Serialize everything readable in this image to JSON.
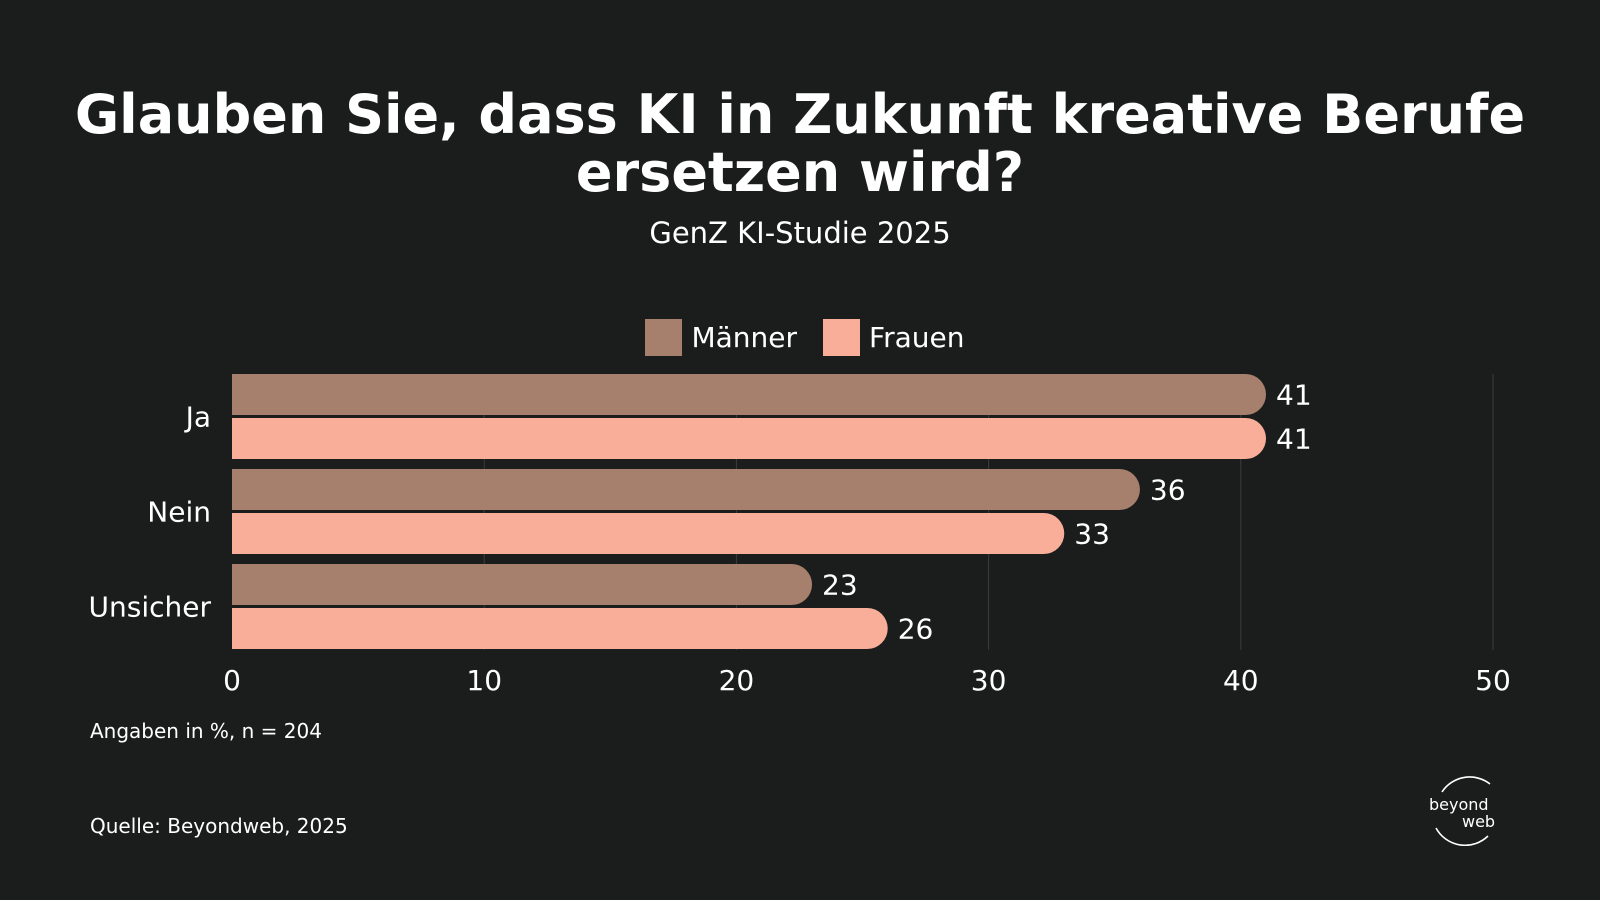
{
  "title": "Glauben Sie, dass KI in Zukunft kreative Berufe ersetzen wird?",
  "subtitle": "GenZ KI-Studie 2025",
  "note": "Angaben in %, n = 204",
  "source": "Quelle: Beyondweb, 2025",
  "logo": {
    "line1": "beyond",
    "line2": "web"
  },
  "colors": {
    "background": "#1b1d1c",
    "maenner": "#a6806d",
    "frauen": "#f9ae9a",
    "grid": "#3a3d3b",
    "text": "#ffffff"
  },
  "chart_data": {
    "type": "bar",
    "orientation": "horizontal",
    "categories": [
      "Ja",
      "Nein",
      "Unsicher"
    ],
    "series": [
      {
        "name": "Männer",
        "values": [
          41,
          36,
          23
        ]
      },
      {
        "name": "Frauen",
        "values": [
          41,
          33,
          26
        ]
      }
    ],
    "xticks": [
      0,
      10,
      20,
      30,
      40,
      50
    ],
    "xlim": [
      0,
      50
    ],
    "grid": true,
    "legend_position": "top-center"
  }
}
